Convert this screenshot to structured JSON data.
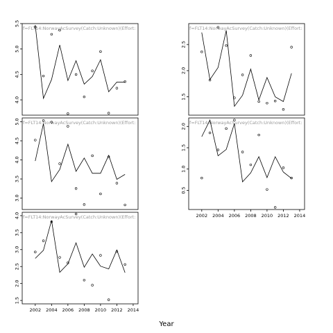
{
  "xlabel": "Year",
  "panel_title": "f=FLT14:NorwayAcSurvey(Catch:Unknown)(Effort:",
  "chart_data": [
    {
      "type": "line+scatter",
      "title": "f=FLT14:NorwayAcSurvey(Catch:Unknown)(Effort:",
      "xlim": [
        2000.4,
        2014.6
      ],
      "ylim": [
        3.7,
        5.5
      ],
      "xticks": [
        2002,
        2004,
        2006,
        2008,
        2010,
        2012,
        2014
      ],
      "yticks": [
        4.0,
        4.5,
        5.0,
        5.5
      ],
      "show_xticks": false,
      "fitted": {
        "x": [
          2002,
          2003,
          2004,
          2005,
          2006,
          2007,
          2008,
          2009,
          2010,
          2011,
          2012,
          2013
        ],
        "y": [
          5.47,
          4.03,
          4.4,
          5.08,
          4.38,
          4.77,
          4.31,
          4.46,
          4.79,
          4.16,
          4.35,
          4.35
        ]
      },
      "observed": {
        "x": [
          2002,
          2003,
          2004,
          2005,
          2006,
          2007,
          2008,
          2009,
          2010,
          2011,
          2012,
          2013
        ],
        "y": [
          5.43,
          4.47,
          5.29,
          5.37,
          3.73,
          4.5,
          4.06,
          4.57,
          4.95,
          3.74,
          4.23,
          4.36
        ]
      }
    },
    {
      "type": "line+scatter",
      "title": "f=FLT14:NorwayAcSurvey(Catch:Unknown)(Effort:",
      "xlim": [
        2000.4,
        2014.6
      ],
      "ylim": [
        1.15,
        2.9
      ],
      "xticks": [
        2002,
        2004,
        2006,
        2008,
        2010,
        2012,
        2014
      ],
      "yticks": [
        1.5,
        2.0,
        2.5
      ],
      "show_xticks": false,
      "fitted": {
        "x": [
          2002,
          2003,
          2004,
          2005,
          2006,
          2007,
          2008,
          2009,
          2010,
          2011,
          2012,
          2013
        ],
        "y": [
          2.73,
          1.83,
          2.06,
          2.77,
          1.32,
          1.53,
          2.03,
          1.44,
          1.87,
          1.5,
          1.41,
          1.95
        ]
      },
      "observed": {
        "x": [
          2002,
          2003,
          2004,
          2005,
          2006,
          2007,
          2008,
          2009,
          2010,
          2011,
          2012,
          2013
        ],
        "y": [
          2.36,
          1.82,
          2.83,
          2.48,
          1.48,
          1.92,
          2.29,
          1.41,
          1.38,
          1.42,
          1.26,
          2.45
        ]
      }
    },
    {
      "type": "line+scatter",
      "title": "f=FLT14:NorwayAcSurvey(Catch:Unknown)(Effort:",
      "xlim": [
        2000.4,
        2014.6
      ],
      "ylim": [
        2.7,
        5.1
      ],
      "xticks": [
        2002,
        2004,
        2006,
        2008,
        2010,
        2012,
        2014
      ],
      "yticks": [
        3.0,
        3.5,
        4.0,
        4.5,
        5.0
      ],
      "show_xticks": false,
      "fitted": {
        "x": [
          2002,
          2003,
          2004,
          2005,
          2006,
          2007,
          2008,
          2009,
          2010,
          2011,
          2012,
          2013
        ],
        "y": [
          3.97,
          4.95,
          3.43,
          3.75,
          4.41,
          3.7,
          4.05,
          3.65,
          3.65,
          4.12,
          3.49,
          3.62
        ]
      },
      "observed": {
        "x": [
          2002,
          2003,
          2004,
          2005,
          2006,
          2007,
          2008,
          2009,
          2010,
          2011,
          2012,
          2013
        ],
        "y": [
          4.52,
          5.03,
          4.99,
          3.9,
          4.88,
          3.25,
          2.83,
          4.11,
          3.11,
          4.08,
          3.39,
          2.82
        ]
      }
    },
    {
      "type": "line+scatter",
      "title": "f=FLT14:NorwayAcSurvey(Catch:Unknown)(Effort:",
      "xlim": [
        2000.4,
        2014.6
      ],
      "ylim": [
        0.05,
        2.2
      ],
      "xticks": [
        2002,
        2004,
        2006,
        2008,
        2010,
        2012,
        2014
      ],
      "yticks": [
        0.5,
        1.0,
        1.5,
        2.0
      ],
      "show_xticks": true,
      "fitted": {
        "x": [
          2002,
          2003,
          2004,
          2005,
          2006,
          2007,
          2008,
          2009,
          2010,
          2011,
          2012,
          2013
        ],
        "y": [
          1.76,
          2.15,
          1.31,
          1.46,
          2.07,
          0.7,
          0.91,
          1.29,
          0.8,
          1.29,
          0.93,
          0.78
        ]
      },
      "observed": {
        "x": [
          2002,
          2003,
          2004,
          2005,
          2006,
          2007,
          2008,
          2009,
          2010,
          2011,
          2012,
          2013
        ],
        "y": [
          0.79,
          1.85,
          1.45,
          1.95,
          2.15,
          1.4,
          1.1,
          1.8,
          0.52,
          0.1,
          1.03,
          0.79
        ]
      }
    },
    {
      "type": "line+scatter",
      "title": "f=FLT14:NorwayAcSurvey(Catch:Unknown)(Effort:",
      "xlim": [
        2000.4,
        2014.6
      ],
      "ylim": [
        1.4,
        4.1
      ],
      "xticks": [
        2002,
        2004,
        2006,
        2008,
        2010,
        2012,
        2014
      ],
      "yticks": [
        1.5,
        2.0,
        2.5,
        3.0,
        3.5,
        4.0
      ],
      "show_xticks": true,
      "fitted": {
        "x": [
          2002,
          2003,
          2004,
          2005,
          2006,
          2007,
          2008,
          2009,
          2010,
          2011,
          2012,
          2013
        ],
        "y": [
          2.74,
          2.98,
          3.86,
          2.33,
          2.58,
          3.2,
          2.48,
          2.87,
          2.51,
          2.43,
          2.99,
          2.32
        ]
      },
      "observed": {
        "x": [
          2002,
          2003,
          2004,
          2005,
          2006,
          2007,
          2008,
          2009,
          2010,
          2011,
          2012,
          2013
        ],
        "y": [
          2.93,
          3.26,
          3.82,
          2.77,
          2.61,
          4.05,
          2.1,
          1.95,
          2.83,
          1.52,
          2.94,
          2.56
        ]
      }
    }
  ]
}
